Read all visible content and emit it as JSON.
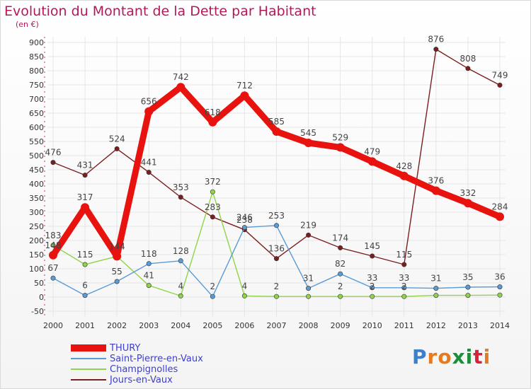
{
  "title": "Evolution du Montant de la Dette par Habitant",
  "subtitle": "(en €)",
  "logo": "Proxiti",
  "colors": {
    "title": "#b2195b",
    "legend_text": "#3f3fc8",
    "grid": "#e6e6e6",
    "axis_text": "#333333"
  },
  "chart_data": {
    "type": "line",
    "x": [
      2000,
      2001,
      2002,
      2003,
      2004,
      2005,
      2006,
      2007,
      2008,
      2009,
      2010,
      2011,
      2012,
      2013,
      2014
    ],
    "ylim": [
      -50,
      900
    ],
    "yticks": [
      -50,
      0,
      50,
      100,
      150,
      200,
      250,
      300,
      350,
      400,
      450,
      500,
      550,
      600,
      650,
      700,
      750,
      800,
      850,
      900
    ],
    "grid": true,
    "legend_position": "bottom-left",
    "series": [
      {
        "name": "Jours-en-Vaux",
        "color": "#7a1f1f",
        "values": [
          476,
          431,
          524,
          441,
          353,
          283,
          238,
          136,
          219,
          174,
          145,
          115,
          876,
          808,
          749
        ],
        "labels": [
          "476",
          "431",
          "524",
          "441",
          "353",
          "283",
          "238",
          "136",
          "219",
          "174",
          "145",
          "115",
          "876",
          "808",
          "749"
        ]
      },
      {
        "name": "Champignolles",
        "color": "#8fd34a",
        "values": [
          183,
          115,
          144,
          41,
          4,
          372,
          4,
          2,
          2,
          2,
          2,
          2,
          6,
          6,
          7
        ],
        "labels": [
          "183",
          "115",
          "144",
          "41",
          "4",
          "372",
          "4",
          "2",
          "",
          "2",
          "2",
          "2",
          "",
          "",
          ""
        ]
      },
      {
        "name": "Saint-Pierre-en-Vaux",
        "color": "#5a9bd5",
        "values": [
          67,
          6,
          55,
          118,
          128,
          2,
          246,
          253,
          31,
          82,
          33,
          33,
          31,
          35,
          36
        ],
        "labels": [
          "67",
          "6",
          "55",
          "118",
          "128",
          "2",
          "246",
          "253",
          "31",
          "82",
          "33",
          "33",
          "31",
          "35",
          "36"
        ]
      },
      {
        "name": "THURY",
        "color": "#e8120e",
        "values": [
          148,
          317,
          144,
          656,
          742,
          618,
          712,
          585,
          545,
          529,
          479,
          428,
          376,
          332,
          284
        ],
        "labels": [
          "148",
          "317",
          "144",
          "656",
          "742",
          "618",
          "712",
          "585",
          "545",
          "529",
          "479",
          "428",
          "376",
          "332",
          "284"
        ]
      }
    ]
  },
  "legend": [
    {
      "label": "THURY",
      "color": "#e8120e",
      "width": 10
    },
    {
      "label": "Saint-Pierre-en-Vaux",
      "color": "#5a9bd5",
      "width": 2
    },
    {
      "label": "Champignolles",
      "color": "#8fd34a",
      "width": 2
    },
    {
      "label": "Jours-en-Vaux",
      "color": "#7a1f1f",
      "width": 2
    }
  ]
}
